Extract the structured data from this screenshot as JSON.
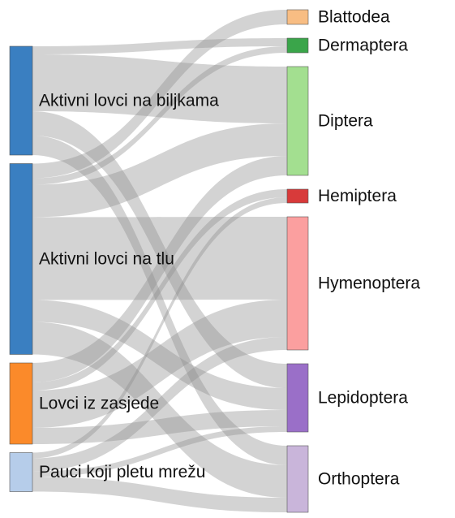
{
  "chart_data": {
    "type": "sankey",
    "nodes": [
      {
        "name": "Aktivni lovci na biljkama",
        "color": "#3a7fc1"
      },
      {
        "name": "Aktivni lovci na tlu",
        "color": "#3a7fc1"
      },
      {
        "name": "Lovci iz zasjede",
        "color": "#fb8a2a"
      },
      {
        "name": "Pauci koji pletu mrežu",
        "color": "#b6cdea"
      },
      {
        "name": "Blattodea",
        "color": "#f8bd83"
      },
      {
        "name": "Dermaptera",
        "color": "#3aa54a"
      },
      {
        "name": "Diptera",
        "color": "#a3df90"
      },
      {
        "name": "Hemiptera",
        "color": "#d83a3a"
      },
      {
        "name": "Hymenoptera",
        "color": "#fb9f9f"
      },
      {
        "name": "Lepidoptera",
        "color": "#9a6fc8"
      },
      {
        "name": "Orthoptera",
        "color": "#c9b5da"
      }
    ],
    "links": [
      {
        "source": 0,
        "target": 5,
        "value": 10
      },
      {
        "source": 0,
        "target": 6,
        "value": 70
      },
      {
        "source": 0,
        "target": 9,
        "value": 30
      },
      {
        "source": 0,
        "target": 10,
        "value": 24
      },
      {
        "source": 1,
        "target": 4,
        "value": 18
      },
      {
        "source": 1,
        "target": 5,
        "value": 8
      },
      {
        "source": 1,
        "target": 6,
        "value": 40
      },
      {
        "source": 1,
        "target": 8,
        "value": 102
      },
      {
        "source": 1,
        "target": 9,
        "value": 27
      },
      {
        "source": 1,
        "target": 10,
        "value": 40
      },
      {
        "source": 2,
        "target": 6,
        "value": 24
      },
      {
        "source": 2,
        "target": 7,
        "value": 10
      },
      {
        "source": 2,
        "target": 8,
        "value": 46
      },
      {
        "source": 2,
        "target": 9,
        "value": 20
      },
      {
        "source": 3,
        "target": 7,
        "value": 7
      },
      {
        "source": 3,
        "target": 8,
        "value": 16
      },
      {
        "source": 3,
        "target": 9,
        "value": 7
      },
      {
        "source": 3,
        "target": 10,
        "value": 18
      }
    ]
  }
}
